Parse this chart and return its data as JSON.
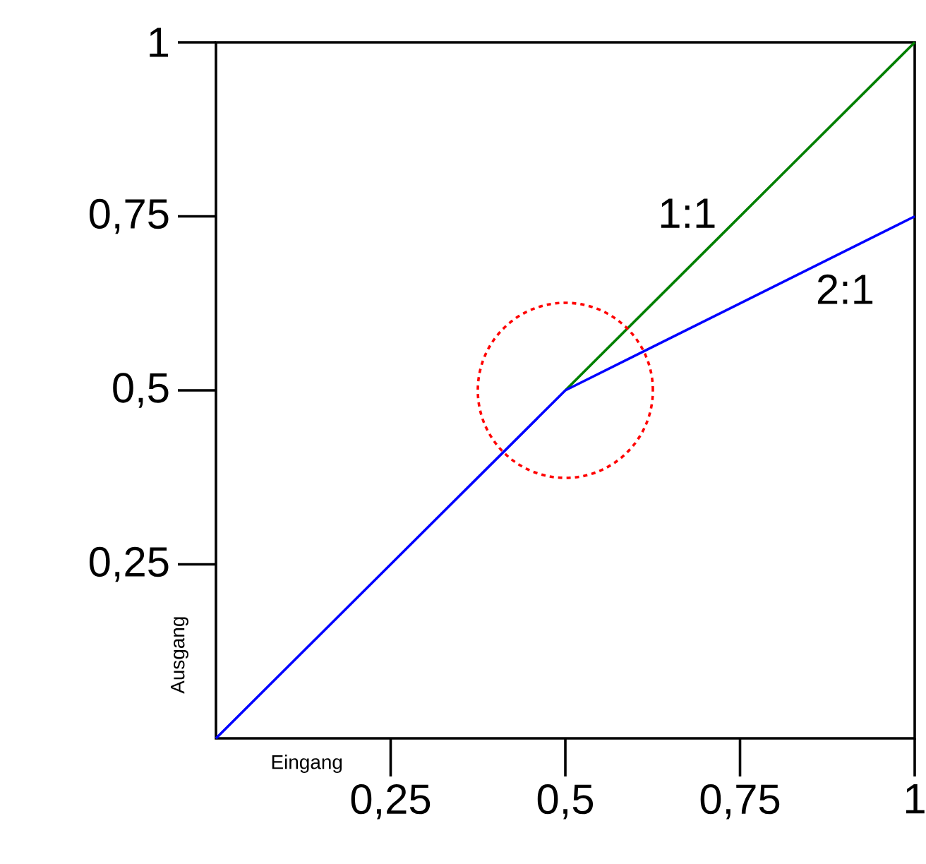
{
  "chart_data": {
    "type": "line",
    "xlabel": "Eingang",
    "ylabel": "Ausgang",
    "series": [
      {
        "name": "1:1",
        "color": "#008000",
        "x": [
          0.5,
          1
        ],
        "values": [
          0.5,
          1
        ]
      },
      {
        "name": "2:1",
        "color": "#0000ff",
        "x": [
          0,
          0.5,
          1
        ],
        "values": [
          0,
          0.5,
          0.75
        ]
      }
    ],
    "xlim": [
      0,
      1
    ],
    "ylim": [
      0,
      1
    ],
    "xticks": [
      {
        "value": 0.25,
        "label": "0,25"
      },
      {
        "value": 0.5,
        "label": "0,5"
      },
      {
        "value": 0.75,
        "label": "0,75"
      },
      1
    ],
    "yticks": [
      {
        "value": 0.25,
        "label": "0,25"
      },
      {
        "value": 0.5,
        "label": "0,5"
      },
      {
        "value": 0.75,
        "label": "0,75"
      },
      1
    ],
    "line_style": "solid",
    "grid": false,
    "legend": false
  }
}
